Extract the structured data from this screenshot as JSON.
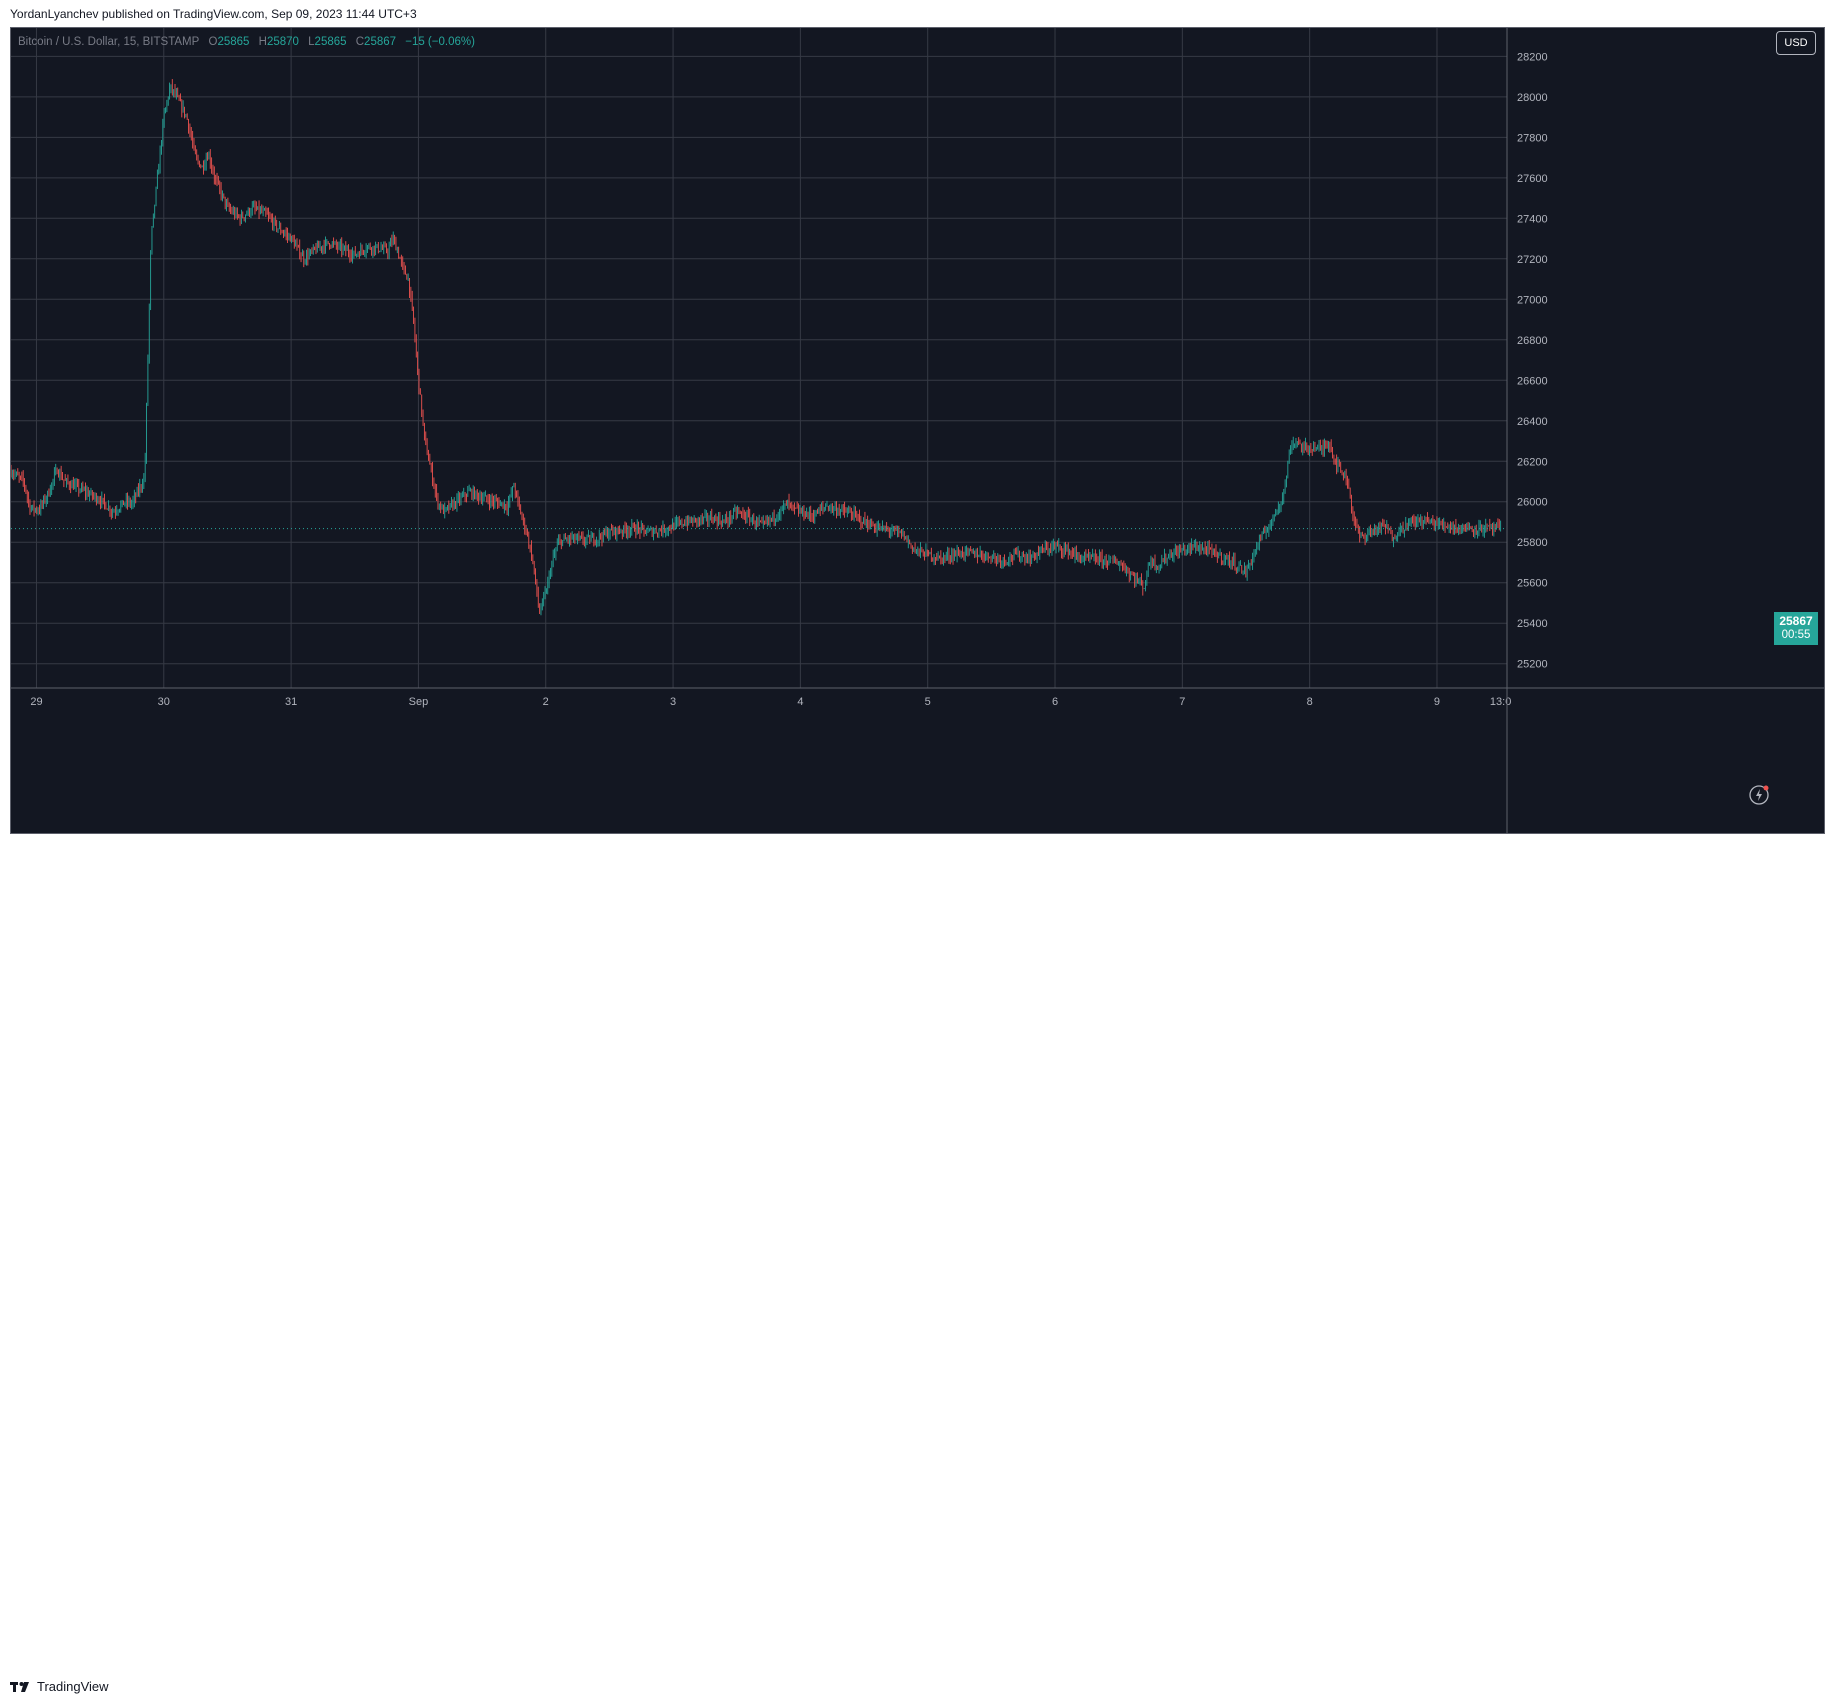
{
  "header": {
    "published_text": "YordanLyanchev published on TradingView.com, Sep 09, 2023 11:44 UTC+3"
  },
  "legend": {
    "symbol": "Bitcoin / U.S. Dollar, 15, BITSTAMP",
    "o_label": "O",
    "o": "25865",
    "h_label": "H",
    "h": "25870",
    "l_label": "L",
    "l": "25865",
    "c_label": "C",
    "c": "25867",
    "change": "−15 (−0.06%)"
  },
  "currency_button": "USD",
  "last_price": {
    "price": "25867",
    "countdown": "00:55"
  },
  "footer": {
    "brand": "TradingView"
  },
  "colors": {
    "background": "#131722",
    "grid": "#363a45",
    "up": "#26a69a",
    "down": "#ef5350",
    "text": "#b2b5be"
  },
  "chart_data": {
    "type": "line",
    "title": "Bitcoin / U.S. Dollar, 15, BITSTAMP",
    "xlabel": "",
    "ylabel": "",
    "ylim": [
      25080,
      28340
    ],
    "y_ticks": [
      25200,
      25400,
      25600,
      25800,
      26000,
      26200,
      26400,
      26600,
      26800,
      27000,
      27200,
      27400,
      27600,
      27800,
      28000,
      28200
    ],
    "x_ticks": [
      {
        "label": "29",
        "x": 0.2
      },
      {
        "label": "30",
        "x": 1.2
      },
      {
        "label": "31",
        "x": 2.2
      },
      {
        "label": "Sep",
        "x": 3.2
      },
      {
        "label": "2",
        "x": 4.2
      },
      {
        "label": "3",
        "x": 5.2
      },
      {
        "label": "4",
        "x": 6.2
      },
      {
        "label": "5",
        "x": 7.2
      },
      {
        "label": "6",
        "x": 8.2
      },
      {
        "label": "7",
        "x": 9.2
      },
      {
        "label": "8",
        "x": 10.2
      },
      {
        "label": "9",
        "x": 11.2
      },
      {
        "label": "13:0",
        "x": 11.7
      }
    ],
    "xlim": [
      0,
      11.75
    ],
    "last_price": 25867,
    "series": [
      {
        "points": [
          [
            0,
            26150
          ],
          [
            0.1,
            26100
          ],
          [
            0.15,
            25970
          ],
          [
            0.22,
            25960
          ],
          [
            0.3,
            26050
          ],
          [
            0.36,
            26160
          ],
          [
            0.42,
            26100
          ],
          [
            0.55,
            26060
          ],
          [
            0.7,
            26010
          ],
          [
            0.8,
            25950
          ],
          [
            0.9,
            26000
          ],
          [
            0.95,
            25990
          ],
          [
            1.05,
            26120
          ],
          [
            1.1,
            27300
          ],
          [
            1.15,
            27600
          ],
          [
            1.2,
            27900
          ],
          [
            1.25,
            28050
          ],
          [
            1.3,
            28000
          ],
          [
            1.38,
            27900
          ],
          [
            1.45,
            27700
          ],
          [
            1.5,
            27650
          ],
          [
            1.55,
            27720
          ],
          [
            1.6,
            27600
          ],
          [
            1.7,
            27450
          ],
          [
            1.8,
            27400
          ],
          [
            1.9,
            27450
          ],
          [
            2.0,
            27420
          ],
          [
            2.1,
            27350
          ],
          [
            2.2,
            27300
          ],
          [
            2.3,
            27200
          ],
          [
            2.4,
            27250
          ],
          [
            2.5,
            27280
          ],
          [
            2.6,
            27250
          ],
          [
            2.7,
            27220
          ],
          [
            2.8,
            27260
          ],
          [
            2.9,
            27250
          ],
          [
            2.96,
            27240
          ],
          [
            3.0,
            27300
          ],
          [
            3.03,
            27250
          ],
          [
            3.08,
            27150
          ],
          [
            3.12,
            27100
          ],
          [
            3.16,
            26900
          ],
          [
            3.2,
            26600
          ],
          [
            3.25,
            26300
          ],
          [
            3.3,
            26150
          ],
          [
            3.35,
            26000
          ],
          [
            3.4,
            25950
          ],
          [
            3.5,
            26000
          ],
          [
            3.6,
            26050
          ],
          [
            3.7,
            26020
          ],
          [
            3.8,
            26000
          ],
          [
            3.9,
            25980
          ],
          [
            3.95,
            26080
          ],
          [
            4.0,
            25950
          ],
          [
            4.05,
            25850
          ],
          [
            4.1,
            25700
          ],
          [
            4.15,
            25450
          ],
          [
            4.2,
            25550
          ],
          [
            4.25,
            25700
          ],
          [
            4.3,
            25800
          ],
          [
            4.4,
            25820
          ],
          [
            4.5,
            25810
          ],
          [
            4.6,
            25820
          ],
          [
            4.7,
            25850
          ],
          [
            4.8,
            25860
          ],
          [
            4.9,
            25870
          ],
          [
            5.0,
            25850
          ],
          [
            5.1,
            25860
          ],
          [
            5.2,
            25880
          ],
          [
            5.3,
            25900
          ],
          [
            5.4,
            25910
          ],
          [
            5.5,
            25920
          ],
          [
            5.6,
            25900
          ],
          [
            5.7,
            25950
          ],
          [
            5.8,
            25920
          ],
          [
            5.9,
            25880
          ],
          [
            6.0,
            25930
          ],
          [
            6.1,
            25990
          ],
          [
            6.15,
            25960
          ],
          [
            6.2,
            25950
          ],
          [
            6.3,
            25930
          ],
          [
            6.4,
            25980
          ],
          [
            6.5,
            25960
          ],
          [
            6.6,
            25940
          ],
          [
            6.7,
            25900
          ],
          [
            6.8,
            25870
          ],
          [
            6.9,
            25860
          ],
          [
            7.0,
            25840
          ],
          [
            7.1,
            25760
          ],
          [
            7.2,
            25740
          ],
          [
            7.3,
            25720
          ],
          [
            7.4,
            25740
          ],
          [
            7.5,
            25750
          ],
          [
            7.6,
            25740
          ],
          [
            7.7,
            25730
          ],
          [
            7.8,
            25710
          ],
          [
            7.9,
            25740
          ],
          [
            8.0,
            25720
          ],
          [
            8.1,
            25760
          ],
          [
            8.2,
            25780
          ],
          [
            8.3,
            25760
          ],
          [
            8.4,
            25720
          ],
          [
            8.5,
            25720
          ],
          [
            8.6,
            25710
          ],
          [
            8.7,
            25700
          ],
          [
            8.8,
            25640
          ],
          [
            8.9,
            25580
          ],
          [
            8.95,
            25720
          ],
          [
            9.0,
            25680
          ],
          [
            9.1,
            25740
          ],
          [
            9.2,
            25760
          ],
          [
            9.3,
            25780
          ],
          [
            9.4,
            25760
          ],
          [
            9.5,
            25730
          ],
          [
            9.6,
            25700
          ],
          [
            9.7,
            25650
          ],
          [
            9.8,
            25800
          ],
          [
            9.9,
            25900
          ],
          [
            10.0,
            26050
          ],
          [
            10.05,
            26280
          ],
          [
            10.1,
            26300
          ],
          [
            10.15,
            26260
          ],
          [
            10.2,
            26270
          ],
          [
            10.3,
            26260
          ],
          [
            10.35,
            26300
          ],
          [
            10.4,
            26200
          ],
          [
            10.5,
            26100
          ],
          [
            10.55,
            25900
          ],
          [
            10.6,
            25820
          ],
          [
            10.7,
            25860
          ],
          [
            10.8,
            25880
          ],
          [
            10.85,
            25820
          ],
          [
            10.9,
            25860
          ],
          [
            11.0,
            25900
          ],
          [
            11.1,
            25910
          ],
          [
            11.2,
            25890
          ],
          [
            11.3,
            25880
          ],
          [
            11.4,
            25870
          ],
          [
            11.5,
            25870
          ],
          [
            11.6,
            25868
          ],
          [
            11.7,
            25867
          ]
        ]
      }
    ]
  }
}
